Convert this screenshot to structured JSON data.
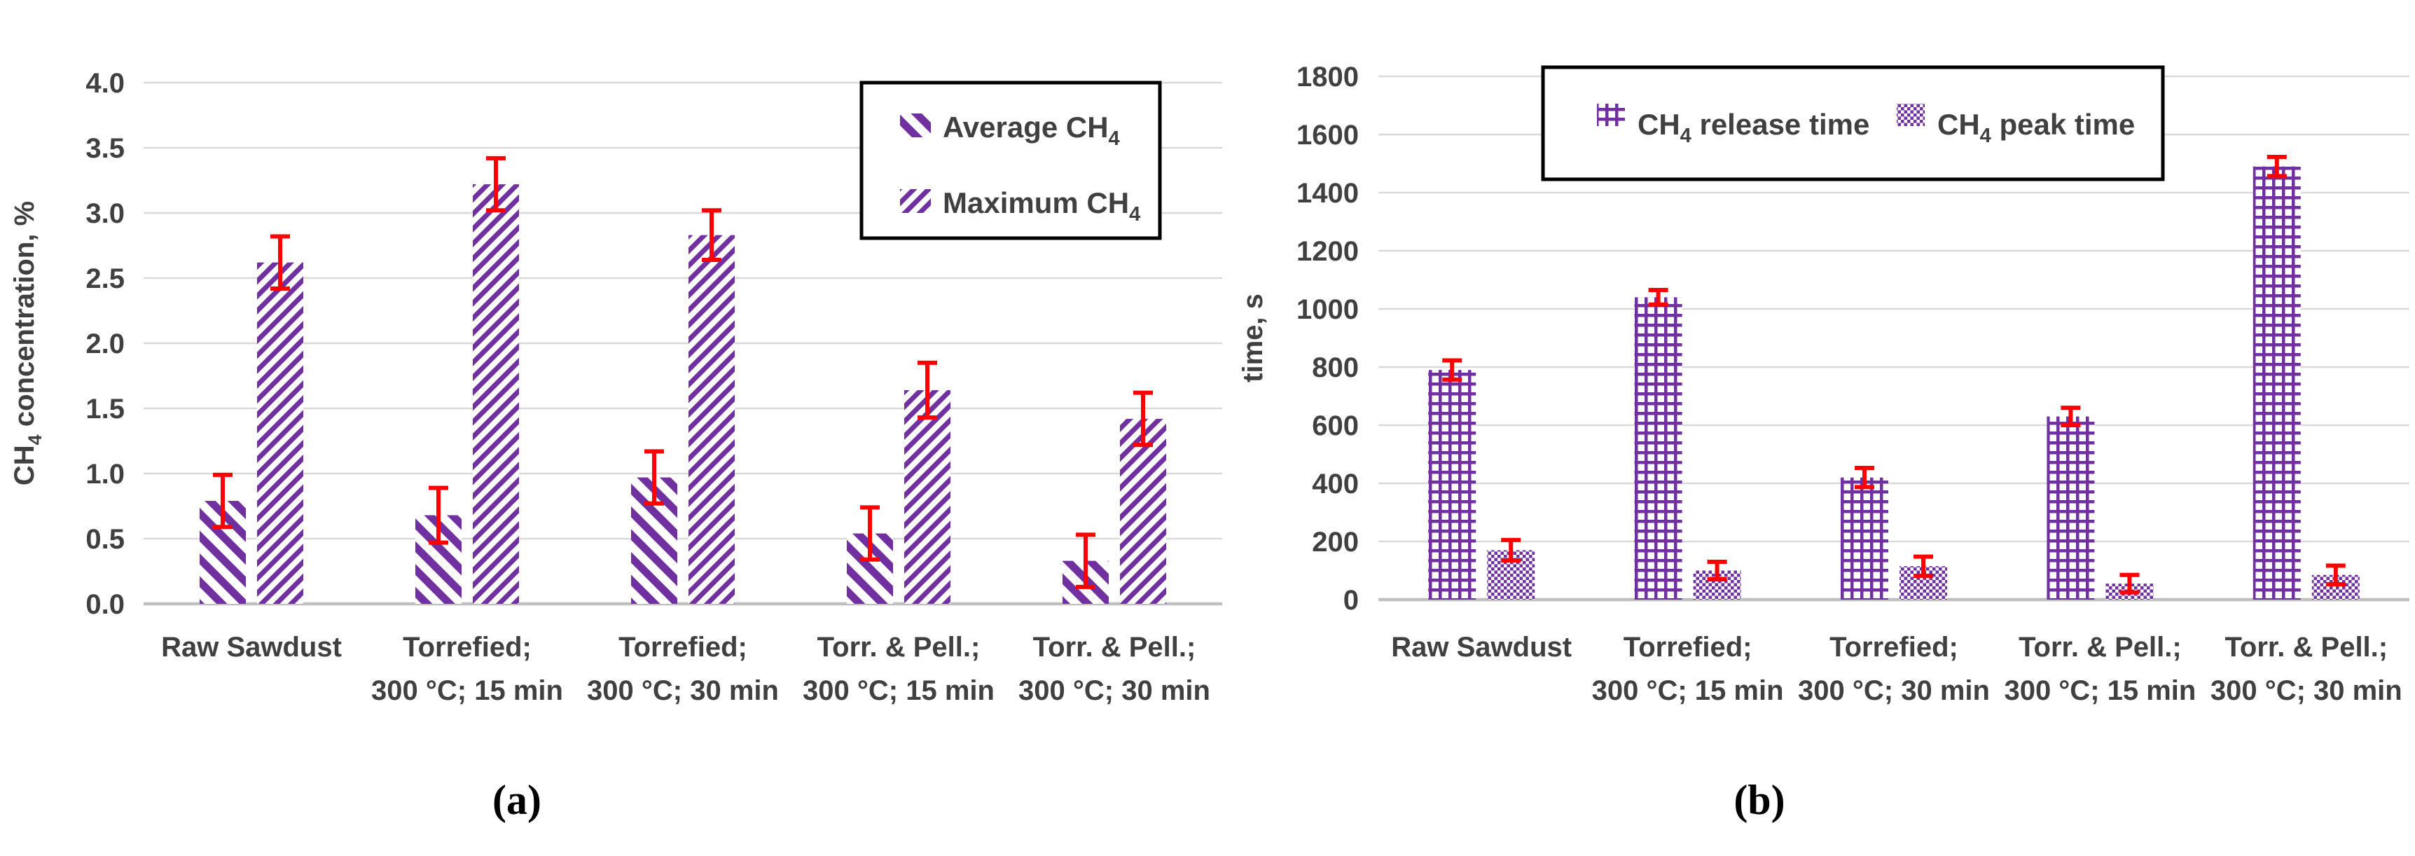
{
  "figure": {
    "captions": {
      "a": "(a)",
      "b": "(b)"
    }
  },
  "colors": {
    "bar_purple": "#7030A0",
    "error_red": "#FF0000",
    "grid_line": "#D9D9D9",
    "axis_line": "#BFBFBF",
    "text": "#404040",
    "legend_border": "#000000",
    "background": "#FFFFFF"
  },
  "chart_data": [
    {
      "panel": "a",
      "type": "bar",
      "ylabel": "CH4 concentration, %",
      "ylabel_segments": [
        {
          "t": "CH"
        },
        {
          "t": "4",
          "sub": true
        },
        {
          "t": " concentration, %"
        }
      ],
      "ylim": [
        0,
        4.0
      ],
      "ytick_step": 0.5,
      "ytick_labels": [
        "0.0",
        "0.5",
        "1.0",
        "1.5",
        "2.0",
        "2.5",
        "3.0",
        "3.5",
        "4.0"
      ],
      "grid": true,
      "legend_position": "top-right-vertical",
      "categories": [
        [
          "Raw Sawdust"
        ],
        [
          "Torrefied;",
          "300 °C; 15 min"
        ],
        [
          "Torrefied;",
          "300 °C; 30 min"
        ],
        [
          "Torr. & Pell.;",
          "300 °C; 15 min"
        ],
        [
          "Torr. & Pell.;",
          "300 °C; 30 min"
        ]
      ],
      "series": [
        {
          "name": "Average CH4",
          "name_segments": [
            {
              "t": "Average CH"
            },
            {
              "t": "4",
              "sub": true
            }
          ],
          "pattern": "diagonal-forward",
          "values": [
            0.79,
            0.68,
            0.97,
            0.54,
            0.33
          ],
          "errors": [
            0.2,
            0.21,
            0.2,
            0.2,
            0.2
          ]
        },
        {
          "name": "Maximum CH4",
          "name_segments": [
            {
              "t": "Maximum CH"
            },
            {
              "t": "4",
              "sub": true
            }
          ],
          "pattern": "diagonal-back",
          "values": [
            2.62,
            3.22,
            2.83,
            1.64,
            1.42
          ],
          "errors": [
            0.2,
            0.2,
            0.19,
            0.21,
            0.2
          ]
        }
      ]
    },
    {
      "panel": "b",
      "type": "bar",
      "ylabel": "time, s",
      "ylabel_segments": [
        {
          "t": "time, s"
        }
      ],
      "ylim": [
        0,
        1800
      ],
      "ytick_step": 200,
      "ytick_labels": [
        "0",
        "200",
        "400",
        "600",
        "800",
        "1000",
        "1200",
        "1400",
        "1600",
        "1800"
      ],
      "grid": true,
      "legend_position": "top-center-horizontal",
      "categories": [
        [
          "Raw Sawdust"
        ],
        [
          "Torrefied;",
          "300 °C; 15 min"
        ],
        [
          "Torrefied;",
          "300 °C; 30 min"
        ],
        [
          "Torr. & Pell.;",
          "300 °C; 15 min"
        ],
        [
          "Torr. & Pell.;",
          "300 °C; 30 min"
        ]
      ],
      "series": [
        {
          "name": "CH4 release time",
          "name_segments": [
            {
              "t": "CH"
            },
            {
              "t": "4",
              "sub": true
            },
            {
              "t": " release time"
            }
          ],
          "pattern": "grid",
          "values": [
            790,
            1040,
            420,
            630,
            1490
          ],
          "errors": [
            33,
            25,
            33,
            30,
            33
          ]
        },
        {
          "name": "CH4 peak time",
          "name_segments": [
            {
              "t": "CH"
            },
            {
              "t": "4",
              "sub": true
            },
            {
              "t": " peak time"
            }
          ],
          "pattern": "checker",
          "values": [
            170,
            100,
            115,
            55,
            85
          ],
          "errors": [
            35,
            30,
            33,
            30,
            32
          ]
        }
      ]
    }
  ]
}
